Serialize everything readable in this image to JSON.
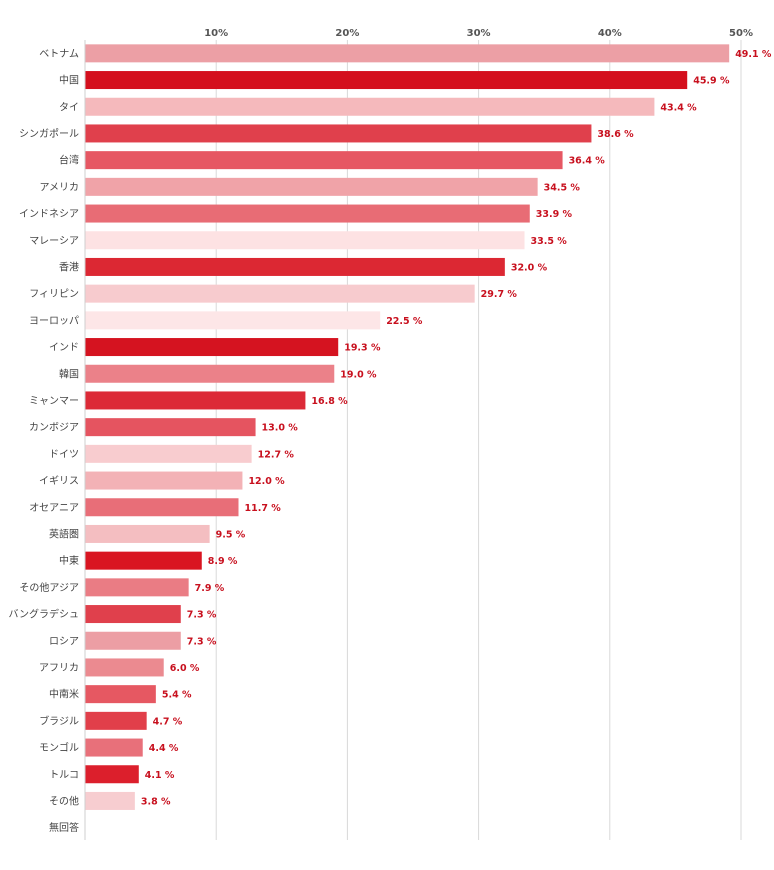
{
  "chart_data": {
    "type": "bar",
    "orientation": "horizontal",
    "title": "",
    "xlabel": "",
    "ylabel": "",
    "xlim": [
      0,
      50
    ],
    "ticks": [
      {
        "value": 10,
        "label": "10%"
      },
      {
        "value": 20,
        "label": "20%"
      },
      {
        "value": 30,
        "label": "30%"
      },
      {
        "value": 40,
        "label": "40%"
      },
      {
        "value": 50,
        "label": "50%"
      }
    ],
    "grid": true,
    "legend": "none",
    "categories": [
      "ベトナム",
      "中国",
      "タイ",
      "シンガポール",
      "台湾",
      "アメリカ",
      "インドネシア",
      "マレーシア",
      "香港",
      "フィリピン",
      "ヨーロッパ",
      "インド",
      "韓国",
      "ミャンマー",
      "カンボジア",
      "ドイツ",
      "イギリス",
      "オセアニア",
      "英語圏",
      "中東",
      "その他アジア",
      "バングラデシュ",
      "ロシア",
      "アフリカ",
      "中南米",
      "ブラジル",
      "モンゴル",
      "トルコ",
      "その他",
      "無回答"
    ],
    "values": [
      49.1,
      45.9,
      43.4,
      38.6,
      36.4,
      34.5,
      33.9,
      33.5,
      32.0,
      29.7,
      22.5,
      19.3,
      19.0,
      16.8,
      13.0,
      12.7,
      12.0,
      11.7,
      9.5,
      8.9,
      7.9,
      7.3,
      7.3,
      6.0,
      5.4,
      4.7,
      4.4,
      4.1,
      3.8,
      null
    ],
    "value_labels": [
      "49.1 %",
      "45.9 %",
      "43.4 %",
      "38.6 %",
      "36.4 %",
      "34.5 %",
      "33.9 %",
      "33.5 %",
      "32.0 %",
      "29.7 %",
      "22.5 %",
      "19.3 %",
      "19.0 %",
      "16.8 %",
      "13.0 %",
      "12.7 %",
      "12.0 %",
      "11.7 %",
      "9.5 %",
      "8.9 %",
      "7.9 %",
      "7.3 %",
      "7.3 %",
      "6.0 %",
      "5.4 %",
      "4.7 %",
      "4.4 %",
      "4.1 %",
      "3.8 %",
      ""
    ],
    "colors": [
      "#ec9fa5",
      "#d40f1d",
      "#f5b9bc",
      "#e0404c",
      "#e65763",
      "#f0a3a8",
      "#e86c75",
      "#fde2e3",
      "#dc2833",
      "#f7cbce",
      "#fde6e7",
      "#d51320",
      "#eb8189",
      "#dc2a37",
      "#e55460",
      "#f8cccf",
      "#f3b2b6",
      "#e86e78",
      "#f4bec1",
      "#d91521",
      "#ea7c84",
      "#e0404c",
      "#ec9ea4",
      "#eb8a90",
      "#e65862",
      "#e13f4a",
      "#e8707a",
      "#dc1f2c",
      "#f7cdd0",
      "#ffffff"
    ],
    "value_label_color": "#c8101e"
  }
}
